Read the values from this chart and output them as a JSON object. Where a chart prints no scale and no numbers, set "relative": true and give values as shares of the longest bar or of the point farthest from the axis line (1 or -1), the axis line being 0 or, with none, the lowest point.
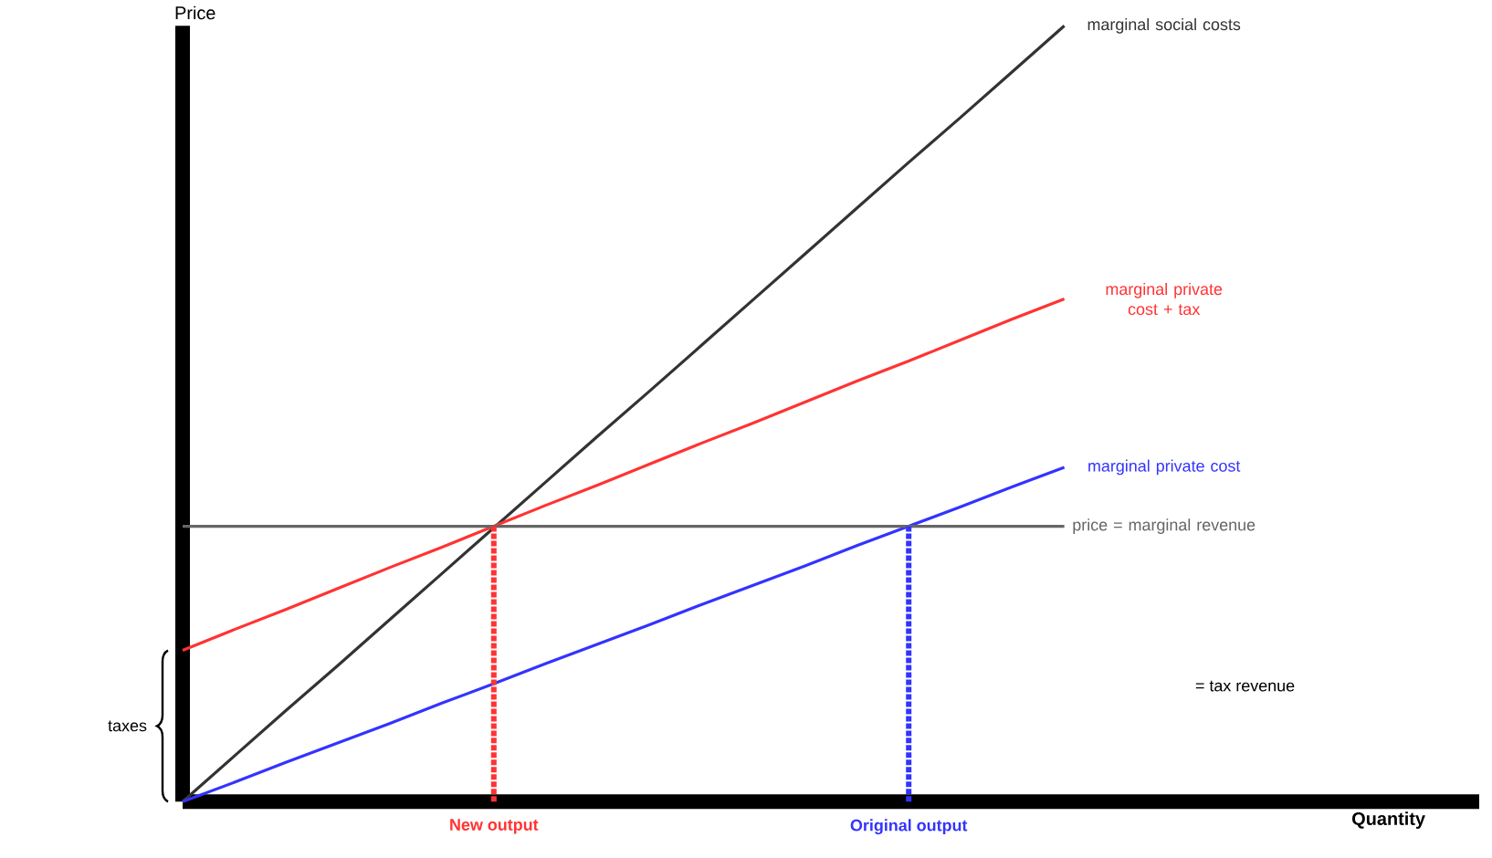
{
  "chart_data": {
    "type": "line",
    "relative": true,
    "xlabel": "Quantity",
    "ylabel": "Price",
    "categories": [
      null,
      null,
      null,
      null,
      null,
      null,
      null,
      null,
      null,
      null,
      null,
      null,
      null,
      null,
      null,
      null,
      null,
      null,
      null,
      null,
      null,
      null,
      null,
      null,
      null,
      null
    ],
    "series": [
      {
        "name": "marginal social costs",
        "color": "#333333",
        "values": [
          0,
          0.059,
          0.118,
          0.176,
          0.235,
          0.294,
          0.353,
          0.412,
          0.471,
          0.529,
          0.588,
          0.647,
          0.706,
          0.765,
          0.824,
          0.882,
          0.941,
          1,
          null,
          null,
          null,
          null,
          null,
          null,
          null,
          null
        ]
      },
      {
        "name": "marginal private cost + tax",
        "color": "#ff3333",
        "values": [
          0.195,
          0.222,
          0.248,
          0.275,
          0.302,
          0.328,
          0.355,
          0.382,
          0.408,
          0.435,
          0.462,
          0.488,
          0.515,
          0.542,
          0.568,
          0.595,
          0.622,
          0.648,
          null,
          null,
          null,
          null,
          null,
          null,
          null,
          null
        ]
      },
      {
        "name": "marginal private cost",
        "color": "#3333ff",
        "values": [
          0,
          0.025,
          0.051,
          0.076,
          0.101,
          0.127,
          0.152,
          0.178,
          0.203,
          0.228,
          0.254,
          0.279,
          0.304,
          0.33,
          0.355,
          0.38,
          0.406,
          0.431,
          null,
          null,
          null,
          null,
          null,
          null,
          null,
          null
        ]
      },
      {
        "name": "price = marginal revenue",
        "color": "#666666",
        "values": [
          0.355,
          0.355,
          0.355,
          0.355,
          0.355,
          0.355,
          0.355,
          0.355,
          0.355,
          0.355,
          0.355,
          0.355,
          0.355,
          0.355,
          0.355,
          0.355,
          0.355,
          0.355,
          null,
          null,
          null,
          null,
          null,
          null,
          null,
          null
        ]
      }
    ],
    "annotations": [
      {
        "text": "New output",
        "y": 0.355
      },
      {
        "text": "Original output",
        "y": 0.355
      },
      "taxes",
      "= tax revenue"
    ]
  }
}
